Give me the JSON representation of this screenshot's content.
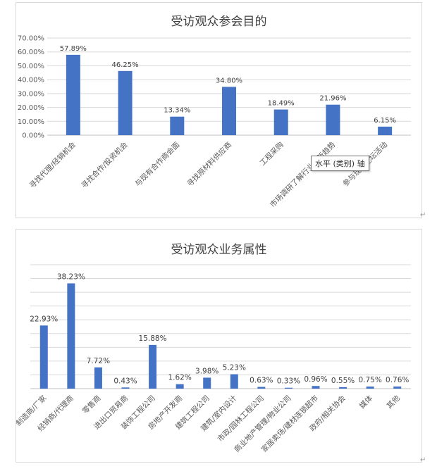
{
  "tooltip": "水平 (类别) 轴",
  "chart_data": [
    {
      "type": "bar",
      "title": "受访观众参会目的",
      "categories": [
        "寻找代理/经销机会",
        "寻找合作/投资机会",
        "与现有合作商会面",
        "寻找原材料供应商",
        "工程采购",
        "市场调研了解行业最新趋势",
        "参与现场论坛活动"
      ],
      "values": [
        57.89,
        46.25,
        13.34,
        34.8,
        18.49,
        21.96,
        6.15
      ],
      "value_labels": [
        "57.89%",
        "46.25%",
        "13.34%",
        "34.80%",
        "18.49%",
        "21.96%",
        "6.15%"
      ],
      "ylim": [
        0,
        70
      ],
      "yticks": [
        "0.00%",
        "10.00%",
        "20.00%",
        "30.00%",
        "40.00%",
        "50.00%",
        "60.00%",
        "70.00%"
      ],
      "grid": true,
      "color": "#4472c4"
    },
    {
      "type": "bar",
      "title": "受访观众业务属性",
      "categories": [
        "制造商/厂家",
        "经销商/代理商",
        "零售商",
        "进出口贸易商",
        "装饰工程公司",
        "房地产开发商",
        "建筑工程公司",
        "建筑/室内设计",
        "市政/园林工程公司",
        "商业地产管理/物业公司",
        "家居卖场/建材连锁超市",
        "政府/相关协会",
        "媒体",
        "其他"
      ],
      "values": [
        22.93,
        38.23,
        7.72,
        0.43,
        15.88,
        1.62,
        3.98,
        5.23,
        0.63,
        0.33,
        0.96,
        0.55,
        0.75,
        0.76
      ],
      "value_labels": [
        "22.93%",
        "38.23%",
        "7.72%",
        "0.43%",
        "15.88%",
        "1.62%",
        "3.98%",
        "5.23%",
        "0.63%",
        "0.33%",
        "0.96%",
        "0.55%",
        "0.75%",
        "0.76%"
      ],
      "ylim": [
        0,
        45
      ],
      "grid": true,
      "color": "#4472c4"
    }
  ]
}
